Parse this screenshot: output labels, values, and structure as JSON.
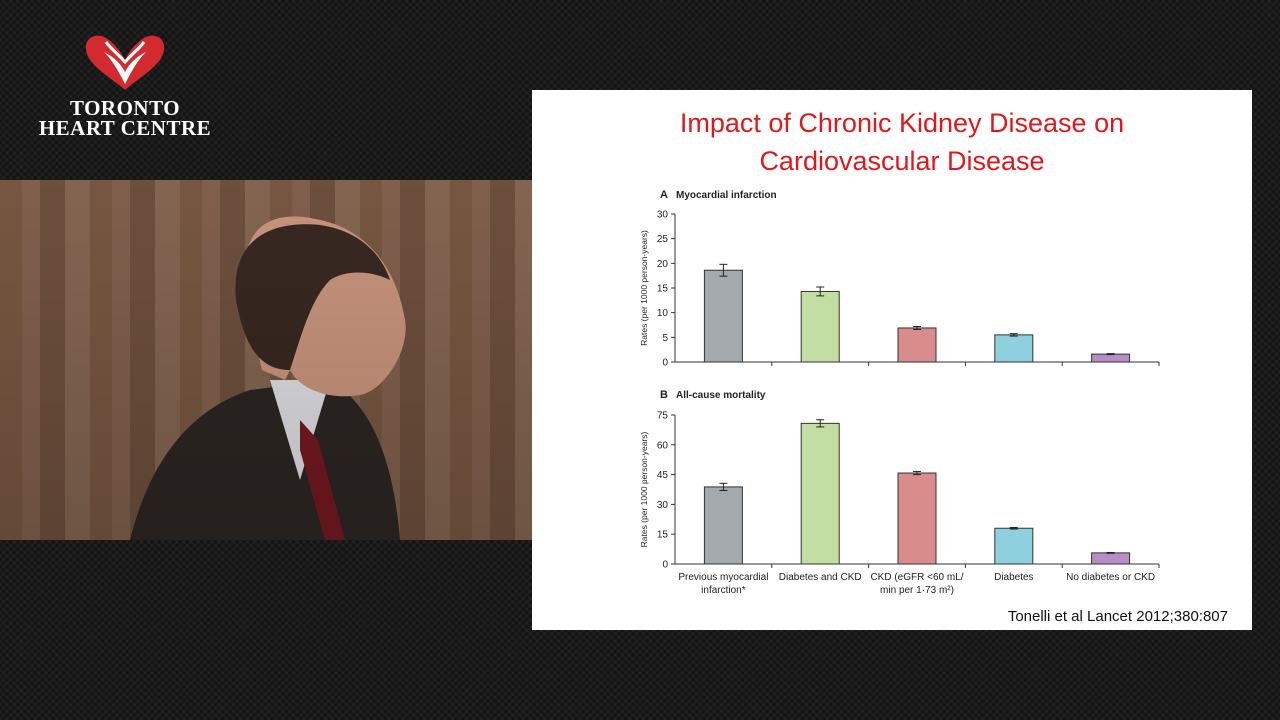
{
  "logo": {
    "line1": "TORONTO",
    "line2": "HEART CENTRE",
    "heart_color": "#d22a2e",
    "icon": "heart-logo-icon"
  },
  "slide": {
    "title_line1": "Impact of Chronic Kidney Disease on",
    "title_line2": "Cardiovascular Disease",
    "title_color": "#e0181b",
    "citation": "Tonelli et al Lancet  2012;380:807"
  },
  "chart_data": [
    {
      "type": "bar",
      "panel": "A",
      "title": "Myocardial infarction",
      "ylabel": "Rates (per 1000 person-years)",
      "ylim": [
        0,
        30
      ],
      "yticks": [
        0,
        5,
        10,
        15,
        20,
        25,
        30
      ],
      "categories": [
        "Previous myocardial infarction*",
        "Diabetes and CKD",
        "CKD (eGFR <60 mL/ min per 1·73 m²)",
        "Diabetes",
        "No diabetes or CKD"
      ],
      "values": [
        18.6,
        14.3,
        6.9,
        5.5,
        1.6
      ],
      "error": [
        1.2,
        0.9,
        0.3,
        0.25,
        0.1
      ],
      "colors": [
        "#a4a9ad",
        "#c2dea2",
        "#d98c8c",
        "#8fd0de",
        "#b88cc4"
      ],
      "grid": false
    },
    {
      "type": "bar",
      "panel": "B",
      "title": "All-cause mortality",
      "ylabel": "Rates (per 1000 person-years)",
      "ylim": [
        0,
        75
      ],
      "yticks": [
        0,
        15,
        30,
        45,
        60,
        75
      ],
      "categories": [
        "Previous myocardial infarction*",
        "Diabetes and CKD",
        "CKD (eGFR <60 mL/ min per 1·73 m²)",
        "Diabetes",
        "No diabetes or CKD"
      ],
      "category_lines": [
        [
          "Previous myocardial",
          "infarction*"
        ],
        [
          "Diabetes and CKD"
        ],
        [
          "CKD (eGFR <60 mL/",
          "min per 1·73 m²)"
        ],
        [
          "Diabetes"
        ],
        [
          "No diabetes or CKD"
        ]
      ],
      "values": [
        38.8,
        70.8,
        45.8,
        18.0,
        5.6
      ],
      "error": [
        1.8,
        1.8,
        0.8,
        0.4,
        0.2
      ],
      "colors": [
        "#a4a9ad",
        "#c2dea2",
        "#d98c8c",
        "#8fd0de",
        "#b88cc4"
      ],
      "grid": false
    }
  ]
}
